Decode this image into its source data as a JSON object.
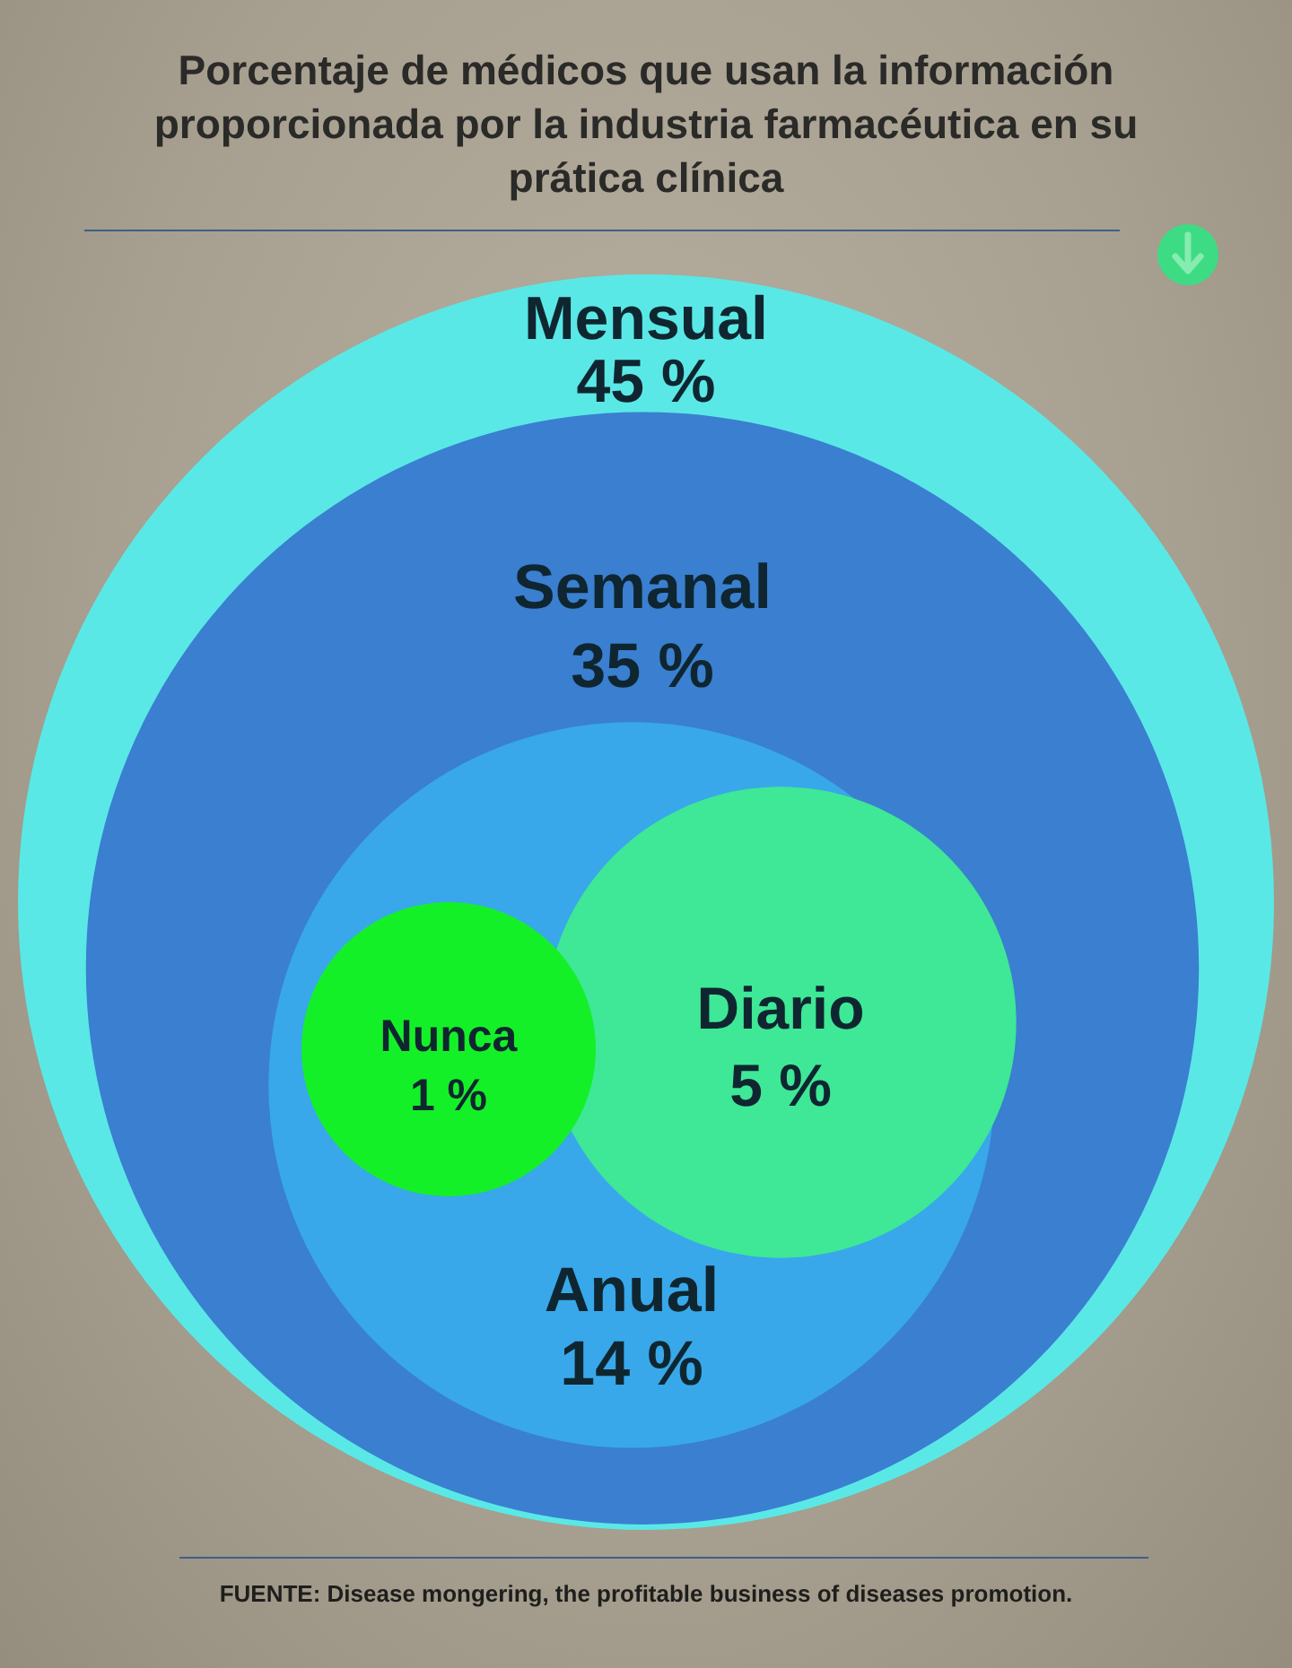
{
  "chart_data": {
    "type": "other",
    "title": "Porcentaje de médicos que usan la información proporcionada por la industria farmacéutica en su prática clínica",
    "categories": [
      "Mensual",
      "Semanal",
      "Anual",
      "Diario",
      "Nunca"
    ],
    "values": [
      45,
      35,
      14,
      5,
      1
    ],
    "value_labels": [
      "45 %",
      "35 %",
      "14 %",
      "5 %",
      "1 %"
    ],
    "colors": [
      "#5ae8e6",
      "#3a7fd0",
      "#38a8ea",
      "#3ee896",
      "#14f028"
    ],
    "annotations": [
      "FUENTE: Disease mongering, the profitable business of diseases promotion."
    ]
  }
}
